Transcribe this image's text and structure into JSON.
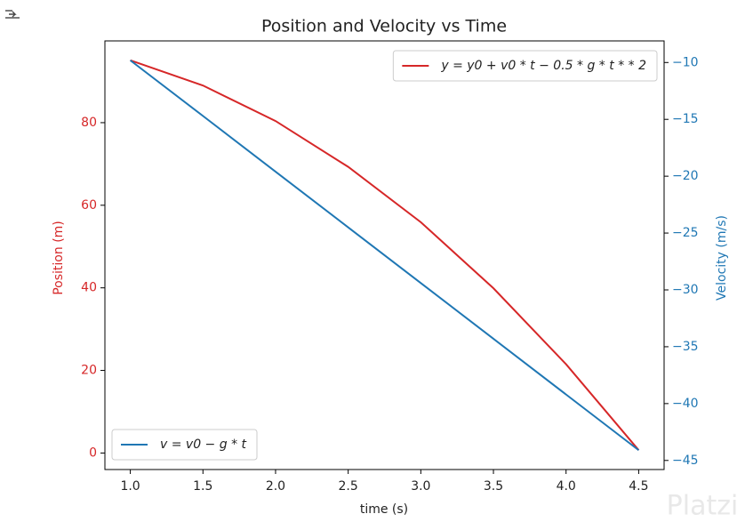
{
  "chart_data": {
    "type": "line",
    "title": "Position and Velocity vs Time",
    "xlabel": "time (s)",
    "ylabel": "Position (m)",
    "y2label": "Velocity (m/s)",
    "x": [
      1.0,
      1.5,
      2.0,
      2.5,
      3.0,
      3.5,
      4.0,
      4.5
    ],
    "series": [
      {
        "name": "y = y0 + v0 * t − 0.5 * g * t * * 2",
        "color": "#d62728",
        "axis": "y",
        "legend": "upper right",
        "values": [
          95.1,
          89.0,
          80.4,
          69.3,
          55.9,
          39.9,
          21.5,
          0.7
        ]
      },
      {
        "name": "v = v0 − g * t",
        "color": "#1f77b4",
        "axis": "y2",
        "legend": "lower left",
        "values": [
          -9.81,
          -14.7,
          -19.6,
          -24.5,
          -29.4,
          -34.3,
          -39.2,
          -44.1
        ]
      }
    ],
    "xlim": [
      0.825,
      4.675
    ],
    "xticks": [
      {
        "value": 1.0,
        "label": "1.0"
      },
      {
        "value": 1.5,
        "label": "1.5"
      },
      {
        "value": 2.0,
        "label": "2.0"
      },
      {
        "value": 2.5,
        "label": "2.5"
      },
      {
        "value": 3.0,
        "label": "3.0"
      },
      {
        "value": 3.5,
        "label": "3.5"
      },
      {
        "value": 4.0,
        "label": "4.0"
      },
      {
        "value": 4.5,
        "label": "4.5"
      }
    ],
    "ylim": [
      -4.0,
      99.8
    ],
    "yticks": [
      0,
      20,
      40,
      60,
      80
    ],
    "y2lim": [
      -45.8,
      -8.1
    ],
    "y2ticks": [
      {
        "value": -45,
        "label": "−45"
      },
      {
        "value": -40,
        "label": "−40"
      },
      {
        "value": -35,
        "label": "−35"
      },
      {
        "value": -30,
        "label": "−30"
      },
      {
        "value": -25,
        "label": "−25"
      },
      {
        "value": -20,
        "label": "−20"
      },
      {
        "value": -15,
        "label": "−15"
      },
      {
        "value": -10,
        "label": "−10"
      }
    ],
    "grid": false,
    "watermark": "Platzi"
  }
}
